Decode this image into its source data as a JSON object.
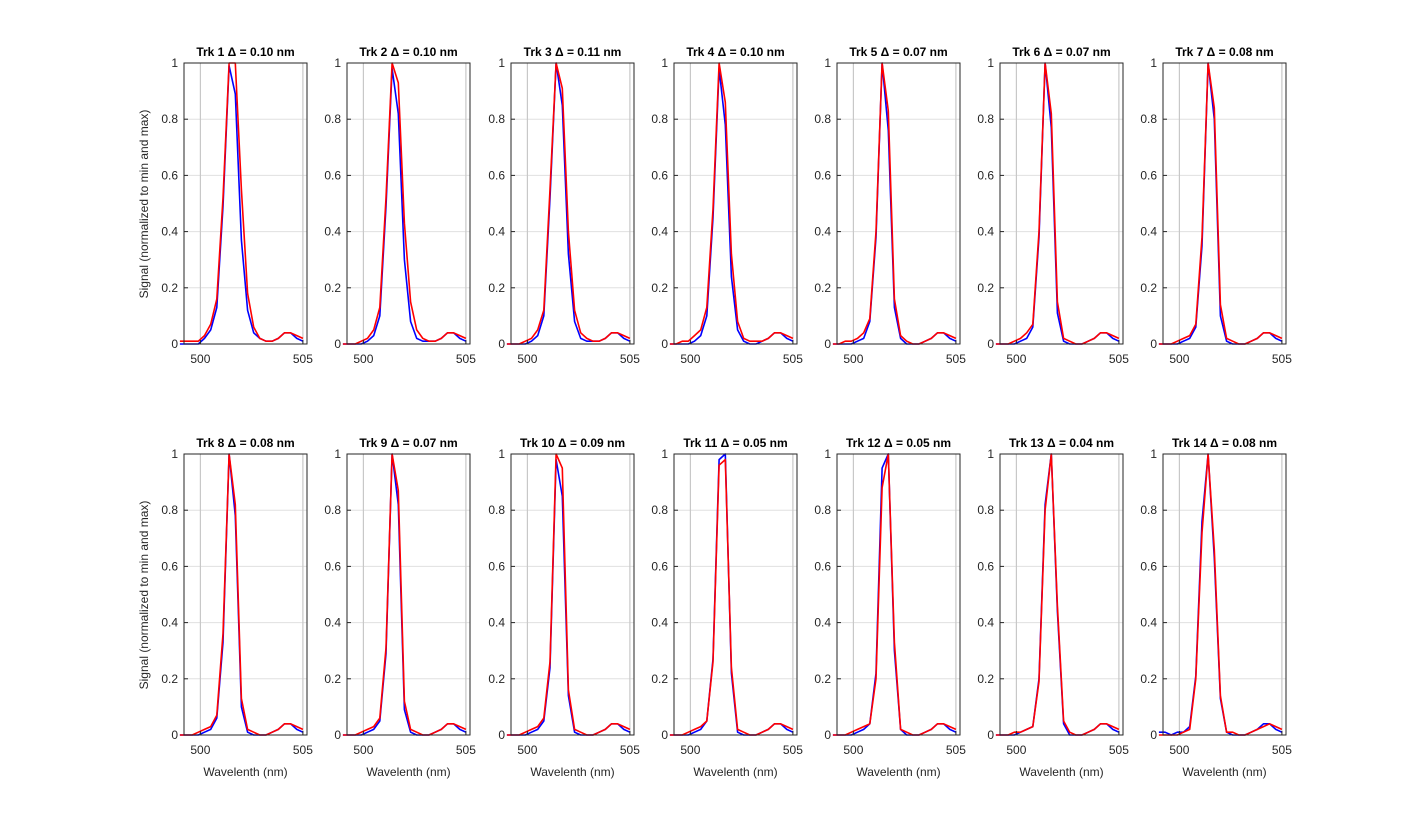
{
  "figure": {
    "ylabel": "Signal (normalized to min and max)",
    "xlabel": "Wavelenth (nm)"
  },
  "colors": {
    "series_a": "#0000ff",
    "series_b": "#ff0000",
    "ref_line": "#c8c8c8",
    "grid": "#e0e0e0",
    "axis": "#262626"
  },
  "chart_data": {
    "type": "line",
    "layout": "2x7 small multiples",
    "shared": {
      "x": [
        499.0,
        499.3,
        499.6,
        499.9,
        500.2,
        500.5,
        500.8,
        501.1,
        501.4,
        501.7,
        502.0,
        502.3,
        502.6,
        502.9,
        503.2,
        503.5,
        503.8,
        504.1,
        504.4,
        504.7,
        505.0
      ],
      "xlim": [
        499.2,
        505.2
      ],
      "ylim": [
        0,
        1
      ],
      "xticks": [
        500,
        505
      ],
      "xtick_labels": [
        "500",
        "505"
      ],
      "yticks": [
        0,
        0.2,
        0.4,
        0.6,
        0.8,
        1
      ],
      "ytick_labels": [
        "0",
        "0.2",
        "0.4",
        "0.6",
        "0.8",
        "1"
      ],
      "reference_lines_x": [
        500,
        505
      ],
      "grid": true,
      "series_names": [
        "blue",
        "red"
      ]
    },
    "panels": [
      {
        "title": "Trk 1 Δ = 0.10 nm",
        "series": [
          {
            "name": "blue",
            "values": [
              0.0,
              0.0,
              0.0,
              0.0,
              0.02,
              0.05,
              0.13,
              0.49,
              0.99,
              0.89,
              0.37,
              0.12,
              0.04,
              0.02,
              0.01,
              0.01,
              0.02,
              0.04,
              0.04,
              0.02,
              0.01
            ]
          },
          {
            "name": "red",
            "values": [
              0.01,
              0.01,
              0.01,
              0.01,
              0.03,
              0.07,
              0.16,
              0.52,
              1.0,
              1.0,
              0.55,
              0.18,
              0.06,
              0.02,
              0.01,
              0.01,
              0.02,
              0.04,
              0.04,
              0.03,
              0.02
            ]
          }
        ]
      },
      {
        "title": "Trk 2 Δ = 0.10 nm",
        "series": [
          {
            "name": "blue",
            "values": [
              0.0,
              0.0,
              0.0,
              0.0,
              0.01,
              0.03,
              0.1,
              0.49,
              0.98,
              0.82,
              0.3,
              0.08,
              0.02,
              0.01,
              0.01,
              0.01,
              0.02,
              0.04,
              0.04,
              0.02,
              0.01
            ]
          },
          {
            "name": "red",
            "values": [
              0.0,
              0.0,
              0.0,
              0.01,
              0.02,
              0.05,
              0.13,
              0.52,
              1.0,
              0.93,
              0.43,
              0.15,
              0.05,
              0.02,
              0.01,
              0.01,
              0.02,
              0.04,
              0.04,
              0.03,
              0.02
            ]
          }
        ]
      },
      {
        "title": "Trk 3 Δ = 0.11 nm",
        "series": [
          {
            "name": "blue",
            "values": [
              0.0,
              0.0,
              0.0,
              0.0,
              0.01,
              0.03,
              0.1,
              0.52,
              1.0,
              0.85,
              0.32,
              0.08,
              0.02,
              0.01,
              0.01,
              0.01,
              0.02,
              0.04,
              0.04,
              0.02,
              0.01
            ]
          },
          {
            "name": "red",
            "values": [
              0.0,
              0.0,
              0.0,
              0.01,
              0.02,
              0.05,
              0.12,
              0.55,
              1.0,
              0.91,
              0.4,
              0.12,
              0.04,
              0.02,
              0.01,
              0.01,
              0.02,
              0.04,
              0.04,
              0.03,
              0.02
            ]
          }
        ]
      },
      {
        "title": "Trk 4 Δ = 0.10 nm",
        "series": [
          {
            "name": "blue",
            "values": [
              0.0,
              0.0,
              0.0,
              0.0,
              0.01,
              0.03,
              0.1,
              0.45,
              0.98,
              0.78,
              0.24,
              0.05,
              0.01,
              0.0,
              0.0,
              0.01,
              0.02,
              0.04,
              0.04,
              0.02,
              0.01
            ]
          },
          {
            "name": "red",
            "values": [
              0.0,
              0.0,
              0.01,
              0.01,
              0.03,
              0.05,
              0.13,
              0.48,
              1.0,
              0.86,
              0.32,
              0.08,
              0.02,
              0.01,
              0.01,
              0.01,
              0.02,
              0.04,
              0.04,
              0.03,
              0.02
            ]
          }
        ]
      },
      {
        "title": "Trk 5 Δ = 0.07 nm",
        "series": [
          {
            "name": "blue",
            "values": [
              0.0,
              0.0,
              0.0,
              0.0,
              0.01,
              0.02,
              0.08,
              0.38,
              1.0,
              0.76,
              0.13,
              0.02,
              0.0,
              0.0,
              0.0,
              0.01,
              0.02,
              0.04,
              0.04,
              0.02,
              0.01
            ]
          },
          {
            "name": "red",
            "values": [
              0.0,
              0.0,
              0.01,
              0.01,
              0.02,
              0.04,
              0.09,
              0.4,
              1.0,
              0.83,
              0.16,
              0.03,
              0.01,
              0.0,
              0.0,
              0.01,
              0.02,
              0.04,
              0.04,
              0.03,
              0.02
            ]
          }
        ]
      },
      {
        "title": "Trk 6 Δ = 0.07 nm",
        "series": [
          {
            "name": "blue",
            "values": [
              0.0,
              0.0,
              0.0,
              0.0,
              0.01,
              0.02,
              0.06,
              0.38,
              1.0,
              0.77,
              0.11,
              0.01,
              0.0,
              0.0,
              0.0,
              0.01,
              0.02,
              0.04,
              0.04,
              0.02,
              0.01
            ]
          },
          {
            "name": "red",
            "values": [
              0.0,
              0.0,
              0.0,
              0.01,
              0.02,
              0.04,
              0.07,
              0.4,
              1.0,
              0.82,
              0.15,
              0.02,
              0.01,
              0.0,
              0.0,
              0.01,
              0.02,
              0.04,
              0.04,
              0.03,
              0.02
            ]
          }
        ]
      },
      {
        "title": "Trk 7 Δ = 0.08 nm",
        "series": [
          {
            "name": "blue",
            "values": [
              0.0,
              0.0,
              0.0,
              0.0,
              0.01,
              0.02,
              0.06,
              0.35,
              1.0,
              0.8,
              0.1,
              0.01,
              0.0,
              0.0,
              0.0,
              0.01,
              0.02,
              0.04,
              0.04,
              0.02,
              0.01
            ]
          },
          {
            "name": "red",
            "values": [
              0.0,
              0.0,
              0.0,
              0.01,
              0.02,
              0.03,
              0.07,
              0.38,
              1.0,
              0.84,
              0.14,
              0.02,
              0.01,
              0.0,
              0.0,
              0.01,
              0.02,
              0.04,
              0.04,
              0.03,
              0.02
            ]
          }
        ]
      },
      {
        "title": "Trk 8 Δ = 0.08 nm",
        "series": [
          {
            "name": "blue",
            "values": [
              0.0,
              0.0,
              0.0,
              0.0,
              0.01,
              0.02,
              0.06,
              0.33,
              1.0,
              0.78,
              0.1,
              0.01,
              0.0,
              0.0,
              0.0,
              0.01,
              0.02,
              0.04,
              0.04,
              0.02,
              0.01
            ]
          },
          {
            "name": "red",
            "values": [
              0.0,
              0.0,
              0.0,
              0.01,
              0.02,
              0.03,
              0.07,
              0.36,
              1.0,
              0.82,
              0.13,
              0.02,
              0.01,
              0.0,
              0.0,
              0.01,
              0.02,
              0.04,
              0.04,
              0.03,
              0.02
            ]
          }
        ]
      },
      {
        "title": "Trk 9 Δ = 0.07 nm",
        "series": [
          {
            "name": "blue",
            "values": [
              0.0,
              0.0,
              0.0,
              0.0,
              0.01,
              0.02,
              0.05,
              0.29,
              1.0,
              0.82,
              0.09,
              0.01,
              0.0,
              0.0,
              0.0,
              0.01,
              0.02,
              0.04,
              0.04,
              0.02,
              0.01
            ]
          },
          {
            "name": "red",
            "values": [
              0.0,
              0.0,
              0.0,
              0.01,
              0.02,
              0.03,
              0.06,
              0.31,
              1.0,
              0.87,
              0.12,
              0.02,
              0.01,
              0.0,
              0.0,
              0.01,
              0.02,
              0.04,
              0.04,
              0.03,
              0.02
            ]
          }
        ]
      },
      {
        "title": "Trk 10 Δ = 0.09 nm",
        "series": [
          {
            "name": "blue",
            "values": [
              0.0,
              0.0,
              0.0,
              0.0,
              0.01,
              0.02,
              0.05,
              0.24,
              0.98,
              0.85,
              0.14,
              0.01,
              0.0,
              0.0,
              0.0,
              0.01,
              0.02,
              0.04,
              0.04,
              0.02,
              0.01
            ]
          },
          {
            "name": "red",
            "values": [
              0.0,
              0.0,
              0.0,
              0.01,
              0.02,
              0.03,
              0.06,
              0.26,
              1.0,
              0.95,
              0.16,
              0.02,
              0.01,
              0.0,
              0.0,
              0.01,
              0.02,
              0.04,
              0.04,
              0.03,
              0.02
            ]
          }
        ]
      },
      {
        "title": "Trk 11 Δ = 0.05 nm",
        "series": [
          {
            "name": "blue",
            "values": [
              0.0,
              0.0,
              0.0,
              0.0,
              0.01,
              0.02,
              0.05,
              0.27,
              0.98,
              1.0,
              0.22,
              0.01,
              0.0,
              0.0,
              0.0,
              0.01,
              0.02,
              0.04,
              0.04,
              0.02,
              0.01
            ]
          },
          {
            "name": "red",
            "values": [
              0.0,
              0.0,
              0.0,
              0.01,
              0.02,
              0.03,
              0.05,
              0.26,
              0.96,
              0.98,
              0.24,
              0.02,
              0.01,
              0.0,
              0.0,
              0.01,
              0.02,
              0.04,
              0.04,
              0.03,
              0.02
            ]
          }
        ]
      },
      {
        "title": "Trk 12 Δ = 0.05 nm",
        "series": [
          {
            "name": "blue",
            "values": [
              0.0,
              0.0,
              0.0,
              0.0,
              0.01,
              0.02,
              0.04,
              0.22,
              0.95,
              1.0,
              0.3,
              0.02,
              0.0,
              0.0,
              0.0,
              0.01,
              0.02,
              0.04,
              0.04,
              0.02,
              0.01
            ]
          },
          {
            "name": "red",
            "values": [
              0.0,
              0.0,
              0.0,
              0.01,
              0.02,
              0.03,
              0.04,
              0.2,
              0.88,
              1.0,
              0.33,
              0.02,
              0.01,
              0.0,
              0.0,
              0.01,
              0.02,
              0.04,
              0.04,
              0.03,
              0.02
            ]
          }
        ]
      },
      {
        "title": "Trk 13 Δ = 0.04 nm",
        "series": [
          {
            "name": "blue",
            "values": [
              0.0,
              0.0,
              0.0,
              0.0,
              0.01,
              0.02,
              0.03,
              0.2,
              0.82,
              1.0,
              0.44,
              0.04,
              0.0,
              0.0,
              0.0,
              0.01,
              0.02,
              0.04,
              0.04,
              0.02,
              0.01
            ]
          },
          {
            "name": "red",
            "values": [
              0.0,
              0.0,
              0.0,
              0.01,
              0.01,
              0.02,
              0.03,
              0.19,
              0.8,
              1.0,
              0.46,
              0.05,
              0.01,
              0.0,
              0.0,
              0.01,
              0.02,
              0.04,
              0.04,
              0.03,
              0.02
            ]
          }
        ]
      },
      {
        "title": "Trk 14 Δ = 0.08 nm",
        "series": [
          {
            "name": "blue",
            "values": [
              0.01,
              0.01,
              0.0,
              0.01,
              0.01,
              0.03,
              0.21,
              0.76,
              1.0,
              0.63,
              0.13,
              0.01,
              0.0,
              0.0,
              0.0,
              0.01,
              0.02,
              0.04,
              0.04,
              0.02,
              0.01
            ]
          },
          {
            "name": "red",
            "values": [
              0.0,
              0.0,
              0.0,
              0.0,
              0.01,
              0.02,
              0.2,
              0.72,
              1.0,
              0.66,
              0.14,
              0.01,
              0.01,
              0.0,
              0.0,
              0.01,
              0.02,
              0.03,
              0.04,
              0.03,
              0.02
            ]
          }
        ]
      }
    ]
  }
}
